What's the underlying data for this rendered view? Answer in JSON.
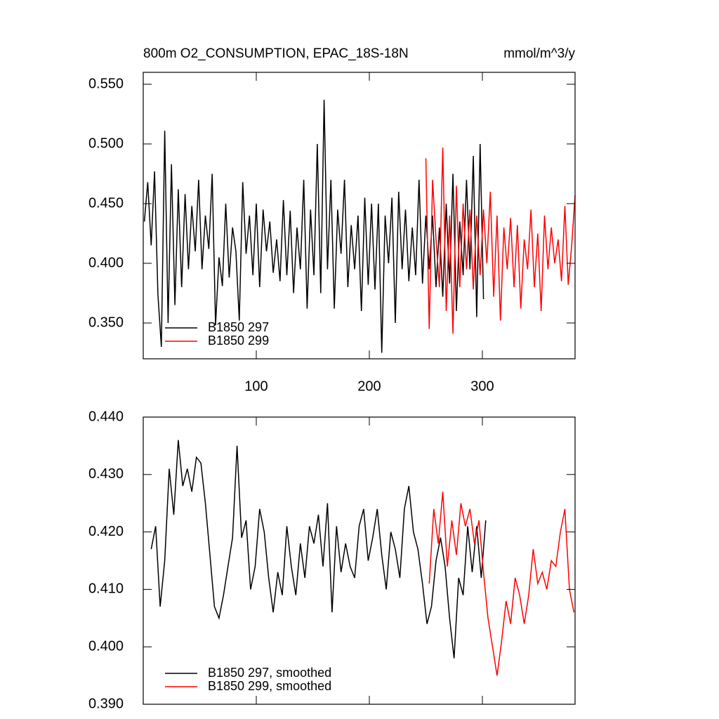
{
  "chart_data": [
    {
      "type": "line",
      "title": "800m O2_CONSUMPTION, EPAC_18S-18N",
      "units": "mmol/m^3/y",
      "xlim": [
        0,
        382
      ],
      "xticks": [
        100,
        200,
        300
      ],
      "xtick_labels": true,
      "ylim": [
        0.32,
        0.56
      ],
      "yticks": [
        {
          "value": 0.35,
          "label": "0.350"
        },
        {
          "value": 0.4,
          "label": "0.400"
        },
        {
          "value": 0.45,
          "label": "0.450"
        },
        {
          "value": 0.5,
          "label": "0.500"
        },
        {
          "value": 0.55,
          "label": "0.550"
        }
      ],
      "series": [
        {
          "name": "B1850 297",
          "color": "#000000",
          "x": [
            1,
            4,
            7,
            10,
            13,
            16,
            19,
            22,
            25,
            28,
            31,
            34,
            37,
            40,
            43,
            46,
            49,
            52,
            55,
            58,
            61,
            64,
            67,
            70,
            73,
            76,
            79,
            82,
            85,
            88,
            91,
            94,
            97,
            100,
            103,
            106,
            109,
            112,
            115,
            118,
            121,
            124,
            127,
            130,
            133,
            136,
            139,
            142,
            145,
            148,
            151,
            154,
            157,
            160,
            163,
            166,
            169,
            172,
            175,
            178,
            181,
            184,
            187,
            190,
            193,
            196,
            199,
            202,
            205,
            208,
            211,
            214,
            217,
            220,
            223,
            226,
            229,
            232,
            235,
            238,
            241,
            244,
            247,
            250,
            253,
            256,
            259,
            262,
            265,
            268,
            271,
            274,
            277,
            280,
            283,
            286,
            289,
            292,
            295,
            298,
            301
          ],
          "values": [
            0.435,
            0.468,
            0.415,
            0.477,
            0.374,
            0.33,
            0.511,
            0.35,
            0.483,
            0.365,
            0.462,
            0.38,
            0.458,
            0.395,
            0.448,
            0.41,
            0.47,
            0.395,
            0.44,
            0.412,
            0.475,
            0.348,
            0.405,
            0.381,
            0.45,
            0.388,
            0.43,
            0.41,
            0.352,
            0.468,
            0.408,
            0.44,
            0.39,
            0.45,
            0.38,
            0.445,
            0.41,
            0.435,
            0.392,
            0.42,
            0.385,
            0.453,
            0.39,
            0.444,
            0.375,
            0.43,
            0.395,
            0.47,
            0.362,
            0.445,
            0.39,
            0.5,
            0.375,
            0.537,
            0.395,
            0.47,
            0.362,
            0.445,
            0.408,
            0.47,
            0.38,
            0.432,
            0.395,
            0.44,
            0.36,
            0.455,
            0.382,
            0.45,
            0.378,
            0.45,
            0.325,
            0.44,
            0.4,
            0.455,
            0.35,
            0.46,
            0.395,
            0.445,
            0.385,
            0.43,
            0.39,
            0.47,
            0.383,
            0.44,
            0.395,
            0.44,
            0.38,
            0.43,
            0.372,
            0.45,
            0.383,
            0.475,
            0.36,
            0.435,
            0.39,
            0.47,
            0.395,
            0.49,
            0.355,
            0.5,
            0.37
          ]
        },
        {
          "name": "B1850 299",
          "color": "#ff0000",
          "x": [
            250,
            253,
            256,
            259,
            262,
            265,
            268,
            271,
            274,
            277,
            280,
            283,
            286,
            289,
            292,
            295,
            298,
            301,
            304,
            307,
            310,
            313,
            316,
            319,
            322,
            325,
            328,
            331,
            334,
            337,
            340,
            343,
            346,
            349,
            352,
            355,
            358,
            361,
            364,
            367,
            370,
            373,
            376,
            379,
            382
          ],
          "values": [
            0.488,
            0.345,
            0.47,
            0.42,
            0.38,
            0.497,
            0.36,
            0.44,
            0.341,
            0.465,
            0.38,
            0.45,
            0.395,
            0.445,
            0.378,
            0.44,
            0.39,
            0.445,
            0.4,
            0.46,
            0.372,
            0.44,
            0.352,
            0.43,
            0.395,
            0.438,
            0.38,
            0.432,
            0.362,
            0.42,
            0.395,
            0.445,
            0.38,
            0.425,
            0.36,
            0.44,
            0.395,
            0.43,
            0.4,
            0.42,
            0.385,
            0.448,
            0.382,
            0.415,
            0.457
          ]
        }
      ]
    },
    {
      "type": "line",
      "xlim": [
        0,
        382
      ],
      "xticks": [
        100,
        200,
        300
      ],
      "xtick_labels": false,
      "ylim": [
        0.39,
        0.44
      ],
      "yticks": [
        {
          "value": 0.39,
          "label": "0.390"
        },
        {
          "value": 0.4,
          "label": "0.400"
        },
        {
          "value": 0.41,
          "label": "0.410"
        },
        {
          "value": 0.42,
          "label": "0.420"
        },
        {
          "value": 0.43,
          "label": "0.430"
        },
        {
          "value": 0.44,
          "label": "0.440"
        }
      ],
      "series": [
        {
          "name": "B1850 297, smoothed",
          "color": "#000000",
          "x": [
            7,
            11,
            15,
            19,
            23,
            27,
            31,
            35,
            39,
            43,
            47,
            51,
            55,
            59,
            63,
            67,
            71,
            75,
            79,
            83,
            87,
            91,
            95,
            99,
            103,
            107,
            111,
            115,
            119,
            123,
            127,
            131,
            135,
            139,
            143,
            147,
            151,
            155,
            159,
            163,
            167,
            171,
            175,
            179,
            183,
            187,
            191,
            195,
            199,
            203,
            207,
            211,
            215,
            219,
            223,
            227,
            231,
            235,
            239,
            243,
            247,
            251,
            255,
            259,
            263,
            267,
            271,
            275,
            279,
            283,
            287,
            291,
            295,
            299,
            303
          ],
          "values": [
            0.417,
            0.421,
            0.407,
            0.415,
            0.431,
            0.423,
            0.436,
            0.428,
            0.431,
            0.427,
            0.433,
            0.432,
            0.425,
            0.416,
            0.407,
            0.405,
            0.409,
            0.414,
            0.419,
            0.435,
            0.419,
            0.422,
            0.41,
            0.414,
            0.424,
            0.42,
            0.412,
            0.406,
            0.413,
            0.409,
            0.421,
            0.414,
            0.409,
            0.418,
            0.412,
            0.421,
            0.418,
            0.423,
            0.414,
            0.425,
            0.406,
            0.421,
            0.413,
            0.418,
            0.414,
            0.412,
            0.421,
            0.424,
            0.415,
            0.419,
            0.424,
            0.416,
            0.41,
            0.42,
            0.417,
            0.412,
            0.424,
            0.428,
            0.42,
            0.417,
            0.411,
            0.404,
            0.407,
            0.415,
            0.419,
            0.414,
            0.405,
            0.398,
            0.412,
            0.409,
            0.421,
            0.413,
            0.421,
            0.412,
            0.422
          ]
        },
        {
          "name": "B1850 299, smoothed",
          "color": "#ff0000",
          "x": [
            253,
            257,
            261,
            265,
            269,
            273,
            277,
            281,
            285,
            289,
            293,
            297,
            301,
            305,
            309,
            313,
            317,
            321,
            325,
            329,
            333,
            337,
            341,
            345,
            349,
            353,
            357,
            361,
            365,
            369,
            373,
            377,
            381
          ],
          "values": [
            0.411,
            0.424,
            0.418,
            0.427,
            0.414,
            0.422,
            0.416,
            0.425,
            0.421,
            0.424,
            0.418,
            0.422,
            0.413,
            0.405,
            0.4,
            0.395,
            0.401,
            0.408,
            0.404,
            0.412,
            0.409,
            0.404,
            0.409,
            0.417,
            0.411,
            0.413,
            0.41,
            0.415,
            0.414,
            0.42,
            0.424,
            0.41,
            0.406
          ]
        }
      ]
    }
  ]
}
